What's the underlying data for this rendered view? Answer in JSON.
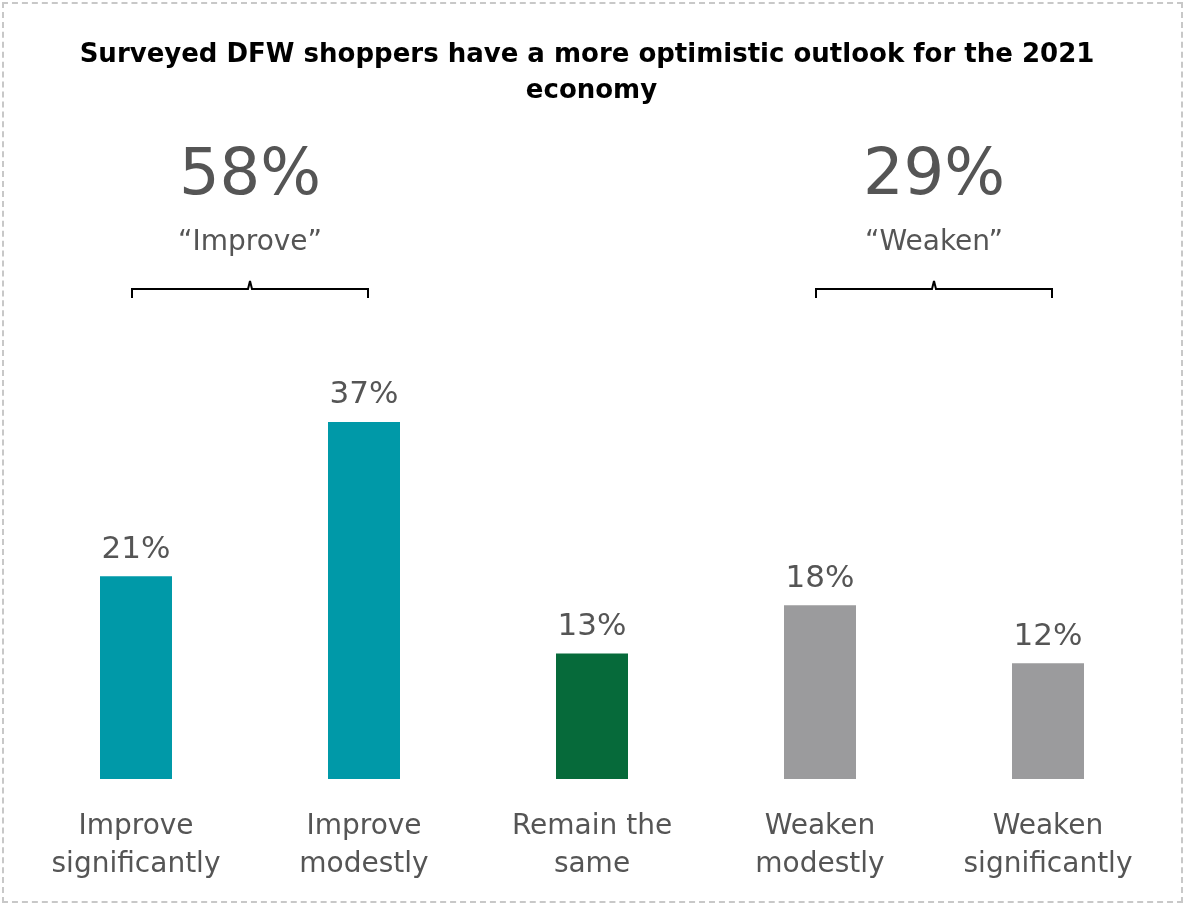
{
  "chart_data": {
    "type": "bar",
    "title": "Surveyed DFW shoppers have a more optimistic outlook for the 2021 economy",
    "categories": [
      "Improve\nsignificantly",
      "Improve\nmodestly",
      "Remain the\nsame",
      "Weaken\nmodestly",
      "Weaken\nsignificantly"
    ],
    "values": [
      21,
      37,
      13,
      18,
      12
    ],
    "colors": [
      "#0099a8",
      "#0099a8",
      "#066a3a",
      "#9b9b9d",
      "#9b9b9d"
    ],
    "value_labels": [
      "21%",
      "37%",
      "13%",
      "18%",
      "12%"
    ],
    "annotations": [
      "58%",
      "“Improve”",
      "29%",
      "“Weaken”"
    ]
  }
}
